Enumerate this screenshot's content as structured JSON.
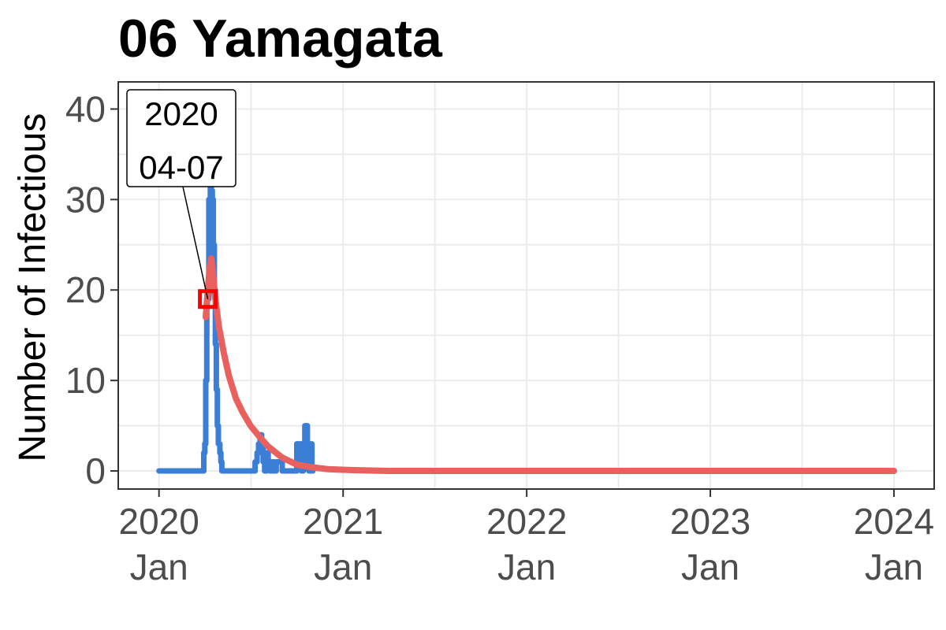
{
  "chart_data": {
    "type": "line",
    "title": "06 Yamagata",
    "xlabel": "",
    "ylabel": "Number of Infectious",
    "x_axis": {
      "type": "date",
      "range": [
        "2019-10-12",
        "2024-03-21"
      ],
      "ticks": [
        {
          "date": "2020-01-01",
          "label_line1": "2020",
          "label_line2": "Jan"
        },
        {
          "date": "2021-01-01",
          "label_line1": "2021",
          "label_line2": "Jan"
        },
        {
          "date": "2022-01-01",
          "label_line1": "2022",
          "label_line2": "Jan"
        },
        {
          "date": "2023-01-01",
          "label_line1": "2023",
          "label_line2": "Jan"
        },
        {
          "date": "2024-01-01",
          "label_line1": "2024",
          "label_line2": "Jan"
        }
      ]
    },
    "y_axis": {
      "range": [
        -2,
        43
      ],
      "ticks": [
        0,
        10,
        20,
        30,
        40
      ]
    },
    "grid": true,
    "legend": "none",
    "series": [
      {
        "color": "#3a7fd5",
        "style": "step",
        "points": [
          [
            "2020-01-01",
            0
          ],
          [
            "2020-03-28",
            0
          ],
          [
            "2020-03-30",
            2
          ],
          [
            "2020-04-01",
            3
          ],
          [
            "2020-04-03",
            10
          ],
          [
            "2020-04-05",
            19
          ],
          [
            "2020-04-07",
            19
          ],
          [
            "2020-04-09",
            30
          ],
          [
            "2020-04-12",
            32
          ],
          [
            "2020-04-14",
            31
          ],
          [
            "2020-04-16",
            30
          ],
          [
            "2020-04-18",
            25
          ],
          [
            "2020-04-20",
            20
          ],
          [
            "2020-04-22",
            14
          ],
          [
            "2020-04-24",
            9
          ],
          [
            "2020-04-26",
            5
          ],
          [
            "2020-04-28",
            3
          ],
          [
            "2020-05-01",
            2
          ],
          [
            "2020-05-03",
            1
          ],
          [
            "2020-05-05",
            0
          ],
          [
            "2020-07-08",
            0
          ],
          [
            "2020-07-10",
            1
          ],
          [
            "2020-07-14",
            2
          ],
          [
            "2020-07-17",
            3
          ],
          [
            "2020-07-20",
            4
          ],
          [
            "2020-07-23",
            3
          ],
          [
            "2020-07-26",
            1
          ],
          [
            "2020-07-29",
            0
          ],
          [
            "2020-08-02",
            2
          ],
          [
            "2020-08-05",
            1
          ],
          [
            "2020-08-09",
            0
          ],
          [
            "2020-08-13",
            1
          ],
          [
            "2020-08-17",
            0
          ],
          [
            "2020-08-21",
            1
          ],
          [
            "2020-08-25",
            1
          ],
          [
            "2020-08-29",
            1
          ],
          [
            "2020-09-02",
            0
          ],
          [
            "2020-09-28",
            0
          ],
          [
            "2020-10-01",
            3
          ],
          [
            "2020-10-04",
            2
          ],
          [
            "2020-10-07",
            3
          ],
          [
            "2020-10-10",
            0
          ],
          [
            "2020-10-14",
            3
          ],
          [
            "2020-10-17",
            5
          ],
          [
            "2020-10-22",
            2
          ],
          [
            "2020-10-25",
            0
          ],
          [
            "2020-10-28",
            3
          ],
          [
            "2020-10-31",
            0
          ],
          [
            "2020-11-02",
            0
          ]
        ]
      },
      {
        "color": "#e8615e",
        "style": "line",
        "points": [
          [
            "2020-04-03",
            17
          ],
          [
            "2020-04-07",
            20
          ],
          [
            "2020-04-11",
            22.5
          ],
          [
            "2020-04-14",
            23.5
          ],
          [
            "2020-04-17",
            22
          ],
          [
            "2020-04-22",
            19
          ],
          [
            "2020-04-29",
            16
          ],
          [
            "2020-05-09",
            13
          ],
          [
            "2020-05-19",
            10.5
          ],
          [
            "2020-06-02",
            8
          ],
          [
            "2020-06-15",
            6.5
          ],
          [
            "2020-07-01",
            5
          ],
          [
            "2020-07-20",
            3.7
          ],
          [
            "2020-08-05",
            2.7
          ],
          [
            "2020-09-01",
            1.5
          ],
          [
            "2020-10-01",
            0.7
          ],
          [
            "2020-11-01",
            0.4
          ],
          [
            "2020-12-01",
            0.2
          ],
          [
            "2021-01-15",
            0.1
          ],
          [
            "2021-04-01",
            0
          ],
          [
            "2022-01-01",
            0
          ],
          [
            "2023-01-01",
            0
          ],
          [
            "2024-01-01",
            0
          ]
        ]
      }
    ],
    "annotation": {
      "date": "2020-04-07",
      "value": 19,
      "line1": "2020",
      "line2": "04-07",
      "marker_color": "#ff0000"
    }
  }
}
